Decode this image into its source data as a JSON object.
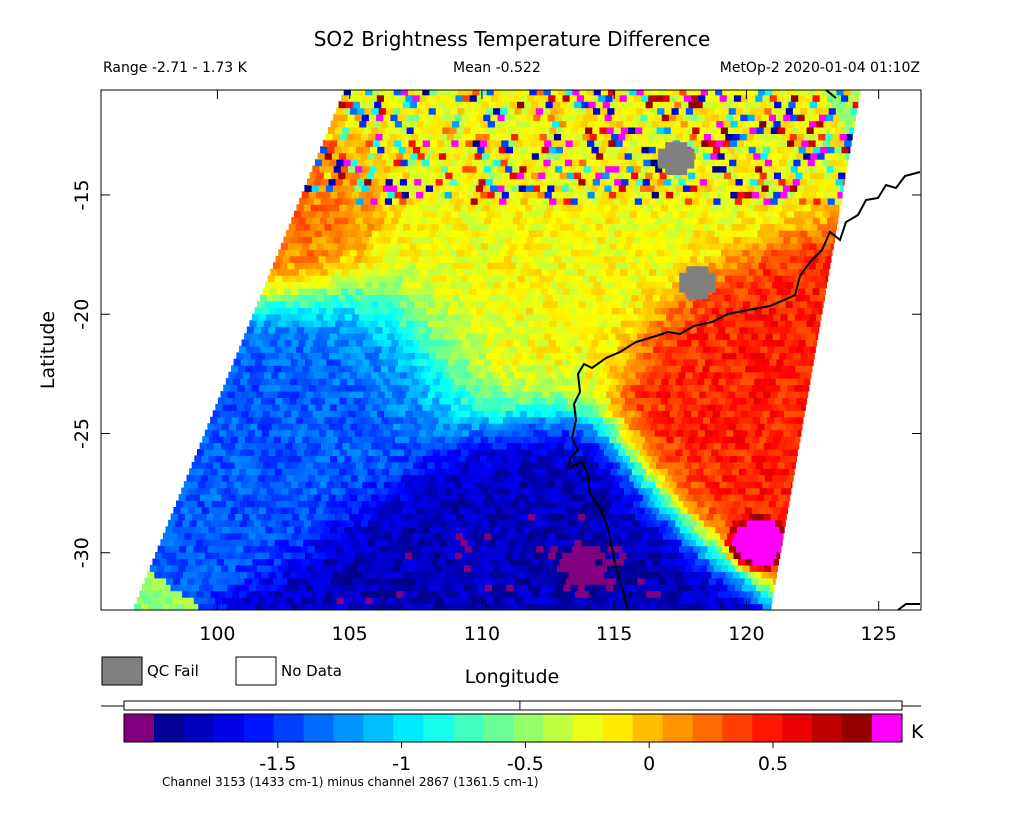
{
  "chart_data": {
    "type": "heatmap",
    "title": "SO2 Brightness Temperature Difference",
    "header": {
      "range": "Range -2.71 - 1.73 K",
      "mean": "Mean -0.522",
      "source": "MetOp-2 2020-01-04 01:10Z"
    },
    "xlabel": "Longitude",
    "ylabel": "Latitude",
    "xlim": [
      95.6,
      126.6
    ],
    "ylim": [
      -32.4,
      -10.6
    ],
    "x_ticks": [
      100,
      105,
      110,
      115,
      120,
      125
    ],
    "x_tick_labels": [
      "100",
      "105",
      "110",
      "115",
      "120",
      "125"
    ],
    "y_ticks": [
      -15,
      -20,
      -25,
      -30
    ],
    "y_tick_labels": [
      "-15",
      "-20",
      "-25",
      "-30"
    ],
    "legend": [
      {
        "label": "QC Fail",
        "color": "#808080"
      },
      {
        "label": "No Data",
        "color": "#ffffff"
      }
    ],
    "colorbar": {
      "min": -2.0,
      "max": 0.9,
      "unit": "K",
      "ticks": [
        -1.5,
        -1,
        -0.5,
        0,
        0.5
      ],
      "tick_labels": [
        "-1.5",
        "-1",
        "-0.5",
        "0",
        "0.5"
      ],
      "under_color": "#800080",
      "over_color": "#ff00ff",
      "caption": "Channel 3153 (1433 cm-1) minus channel 2867 (1361.5 cm-1)",
      "range_box": [
        -2.71,
        1.73
      ],
      "mean_marker": -0.522
    },
    "swath": {
      "west_edge": [
        [
          -32.4,
          96.8
        ],
        [
          -10.6,
          104.8
        ]
      ],
      "east_edge": [
        [
          -32.4,
          120.9
        ],
        [
          -10.6,
          124.3
        ]
      ]
    },
    "field_regions": [
      {
        "name": "high-east",
        "lon": 119.5,
        "lat": -24.0,
        "value": 0.45,
        "radius": 2.6
      },
      {
        "name": "high-northwest",
        "lon": 103.5,
        "lat": -16.5,
        "value": 0.25,
        "radius": 2.2
      },
      {
        "name": "mid-north",
        "lon": 110.0,
        "lat": -18.0,
        "value": -0.2,
        "radius": 4.0
      },
      {
        "name": "low-west",
        "lon": 105.0,
        "lat": -22.5,
        "value": -1.4,
        "radius": 3.0
      },
      {
        "name": "low-south",
        "lon": 111.5,
        "lat": -29.5,
        "value": -1.85,
        "radius": 3.2
      },
      {
        "name": "very-low-spot",
        "lon": 113.8,
        "lat": -30.6,
        "value": -2.3,
        "radius": 0.7
      },
      {
        "name": "over-spot",
        "lon": 120.4,
        "lat": -29.4,
        "value": 1.2,
        "radius": 0.5
      }
    ],
    "qc_fail_regions": [
      {
        "lon": 118.0,
        "lat": -18.8
      },
      {
        "lon": 117.2,
        "lat": -13.6
      }
    ]
  }
}
